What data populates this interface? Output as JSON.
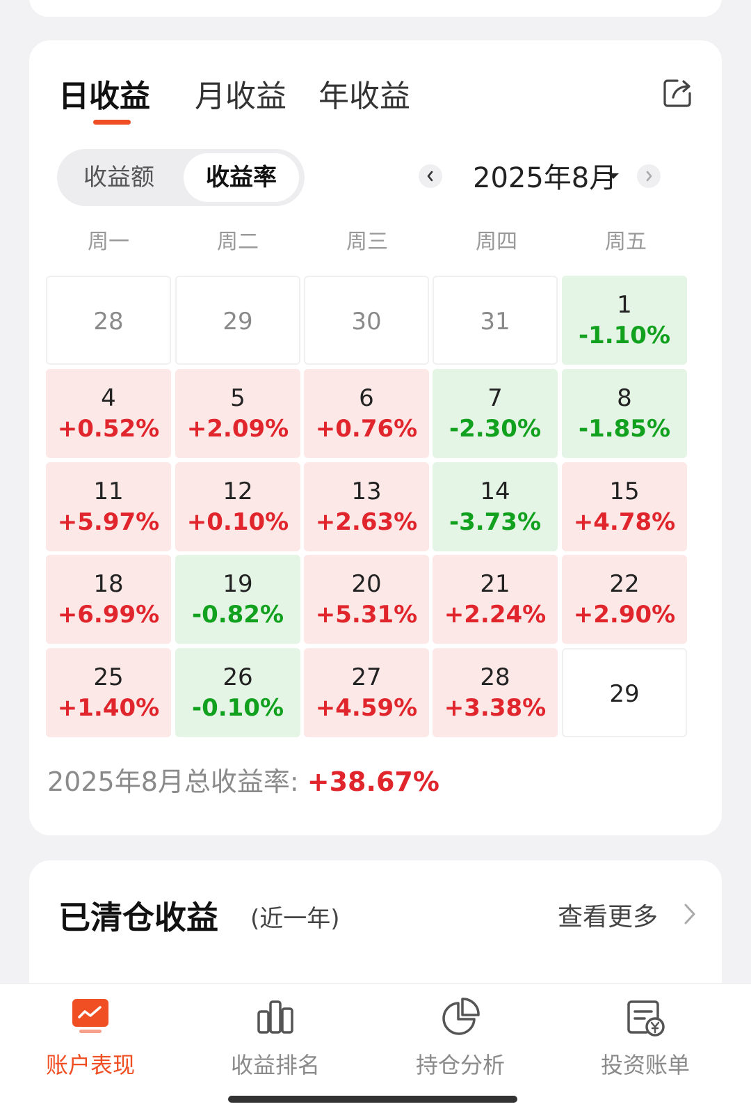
{
  "period_tabs": [
    {
      "label": "日收益",
      "active": true
    },
    {
      "label": "月收益",
      "active": false
    },
    {
      "label": "年收益",
      "active": false
    }
  ],
  "share_icon": "share-icon",
  "segment": {
    "options": [
      "收益额",
      "收益率"
    ],
    "selected": "收益率"
  },
  "month_nav": {
    "label": "2025年8月",
    "prev_icon": "chevron-left-icon",
    "next_icon": "chevron-right-icon",
    "dropdown_icon": "caret-down-icon"
  },
  "weekdays": [
    "周一",
    "周二",
    "周三",
    "周四",
    "周五"
  ],
  "calendar": [
    [
      {
        "day": "28",
        "pct": "",
        "trend": "none",
        "muted": true
      },
      {
        "day": "29",
        "pct": "",
        "trend": "none",
        "muted": true
      },
      {
        "day": "30",
        "pct": "",
        "trend": "none",
        "muted": true
      },
      {
        "day": "31",
        "pct": "",
        "trend": "none",
        "muted": true
      },
      {
        "day": "1",
        "pct": "-1.10%",
        "trend": "down"
      }
    ],
    [
      {
        "day": "4",
        "pct": "+0.52%",
        "trend": "up"
      },
      {
        "day": "5",
        "pct": "+2.09%",
        "trend": "up"
      },
      {
        "day": "6",
        "pct": "+0.76%",
        "trend": "up"
      },
      {
        "day": "7",
        "pct": "-2.30%",
        "trend": "down"
      },
      {
        "day": "8",
        "pct": "-1.85%",
        "trend": "down"
      }
    ],
    [
      {
        "day": "11",
        "pct": "+5.97%",
        "trend": "up"
      },
      {
        "day": "12",
        "pct": "+0.10%",
        "trend": "up"
      },
      {
        "day": "13",
        "pct": "+2.63%",
        "trend": "up"
      },
      {
        "day": "14",
        "pct": "-3.73%",
        "trend": "down"
      },
      {
        "day": "15",
        "pct": "+4.78%",
        "trend": "up"
      }
    ],
    [
      {
        "day": "18",
        "pct": "+6.99%",
        "trend": "up"
      },
      {
        "day": "19",
        "pct": "-0.82%",
        "trend": "down"
      },
      {
        "day": "20",
        "pct": "+5.31%",
        "trend": "up"
      },
      {
        "day": "21",
        "pct": "+2.24%",
        "trend": "up"
      },
      {
        "day": "22",
        "pct": "+2.90%",
        "trend": "up"
      }
    ],
    [
      {
        "day": "25",
        "pct": "+1.40%",
        "trend": "up"
      },
      {
        "day": "26",
        "pct": "-0.10%",
        "trend": "down"
      },
      {
        "day": "27",
        "pct": "+4.59%",
        "trend": "up"
      },
      {
        "day": "28",
        "pct": "+3.38%",
        "trend": "up"
      },
      {
        "day": "29",
        "pct": "",
        "trend": "none",
        "muted": false
      }
    ]
  ],
  "summary": {
    "label": "2025年8月总收益率: ",
    "value": "+38.67%"
  },
  "cleared": {
    "title": "已清仓收益",
    "subtitle": "(近一年)",
    "more": "查看更多"
  },
  "bottom_nav": [
    {
      "label": "账户表现",
      "icon": "account-performance-icon",
      "active": true
    },
    {
      "label": "收益排名",
      "icon": "bar-chart-icon",
      "active": false
    },
    {
      "label": "持仓分析",
      "icon": "pie-chart-icon",
      "active": false
    },
    {
      "label": "投资账单",
      "icon": "bill-icon",
      "active": false
    }
  ],
  "colors": {
    "accent": "#f04e23",
    "up": "#e0262c",
    "down": "#12a11f",
    "up_bg": "#fde8e8",
    "down_bg": "#e4f4e5"
  }
}
